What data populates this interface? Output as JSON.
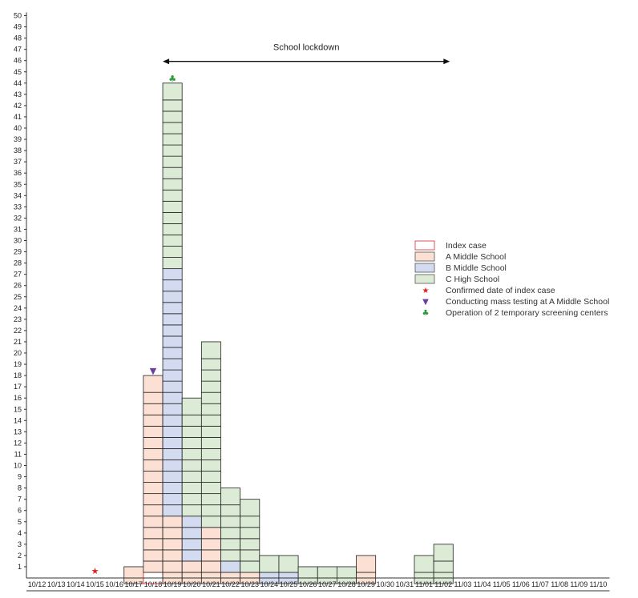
{
  "chart_data": {
    "type": "bar",
    "title": "",
    "xlabel": "",
    "ylabel": "",
    "ylim": [
      0,
      50
    ],
    "categories": [
      "10/12",
      "10/13",
      "10/14",
      "10/15",
      "10/16",
      "10/17",
      "10/18",
      "10/19",
      "10/20",
      "10/21",
      "10/22",
      "10/23",
      "10/24",
      "10/25",
      "10/26",
      "10/27",
      "10/28",
      "10/29",
      "10/30",
      "10/31",
      "11/01",
      "11/02",
      "11/03",
      "11/04",
      "11/05",
      "11/06",
      "11/07",
      "11/08",
      "11/09",
      "11/10"
    ],
    "category_colors": [
      "#222222",
      "#222222",
      "#222222",
      "#222222",
      "#1f7fc4",
      "#d42a2a",
      "#222222",
      "#222222",
      "#222222",
      "#222222",
      "#222222",
      "#1f7fc4",
      "#d42a2a",
      "#222222",
      "#222222",
      "#222222",
      "#222222",
      "#222222",
      "#1f7fc4",
      "#d42a2a",
      "#222222",
      "#222222",
      "#222222",
      "#222222",
      "#222222",
      "#1f7fc4",
      "#d42a2a",
      "#222222",
      "#222222",
      "#222222"
    ],
    "series": [
      {
        "name": "Index case",
        "color": "#ffffff",
        "stroke": "#e05050",
        "values": [
          0,
          0,
          0,
          0,
          0,
          0,
          1,
          0,
          0,
          0,
          0,
          0,
          0,
          0,
          0,
          0,
          0,
          0,
          0,
          0,
          0,
          0,
          0,
          0,
          0,
          0,
          0,
          0,
          0,
          0
        ]
      },
      {
        "name": "A Middle School",
        "color": "#fbe0d3",
        "values": [
          0,
          0,
          0,
          0,
          0,
          1,
          17,
          6,
          2,
          5,
          1,
          1,
          0,
          0,
          0,
          0,
          0,
          2,
          0,
          0,
          0,
          0,
          0,
          0,
          0,
          0,
          0,
          0,
          0,
          0
        ]
      },
      {
        "name": "B Middle School",
        "color": "#d3dbf0",
        "values": [
          0,
          0,
          0,
          0,
          0,
          0,
          0,
          22,
          4,
          0,
          1,
          0,
          1,
          1,
          0,
          0,
          0,
          0,
          0,
          0,
          0,
          0,
          0,
          0,
          0,
          0,
          0,
          0,
          0,
          0
        ]
      },
      {
        "name": "C High School",
        "color": "#dbebd5",
        "values": [
          0,
          0,
          0,
          0,
          0,
          0,
          0,
          16,
          10,
          16,
          6,
          6,
          1,
          1,
          1,
          1,
          1,
          0,
          0,
          0,
          2,
          3,
          0,
          0,
          0,
          0,
          0,
          0,
          0,
          0
        ]
      }
    ],
    "markers": [
      {
        "name": "Confirmed date of index case",
        "symbol": "★",
        "color": "#e02020",
        "category": "10/15",
        "y": 0
      },
      {
        "name": "Conducting mass testing at A Middle School",
        "symbol": "▼",
        "color": "#6b3fa0",
        "category": "10/18",
        "y": 18
      },
      {
        "name": "Operation of 2 temporary screening centers",
        "symbol": "♣",
        "color": "#2a9a3a",
        "category": "10/19",
        "y": 44
      }
    ],
    "annotation": {
      "label": "School lockdown",
      "from": "10/19",
      "to": "11/02",
      "y": 46
    },
    "y_ticks": [
      "1",
      "2",
      "3",
      "4",
      "5",
      "6",
      "7",
      "8",
      "9",
      "10",
      "11",
      "12",
      "13",
      "14",
      "15",
      "16",
      "17",
      "18",
      "19",
      "20",
      "21",
      "22",
      "23",
      "24",
      "25",
      "26",
      "27",
      "28",
      "29",
      "30",
      "31",
      "32",
      "33",
      "34",
      "35",
      "36",
      "37",
      "38",
      "39",
      "40",
      "41",
      "42",
      "43",
      "44",
      "45",
      "46",
      "47",
      "48",
      "49",
      "50"
    ],
    "legend_position": "right",
    "grid": false
  }
}
